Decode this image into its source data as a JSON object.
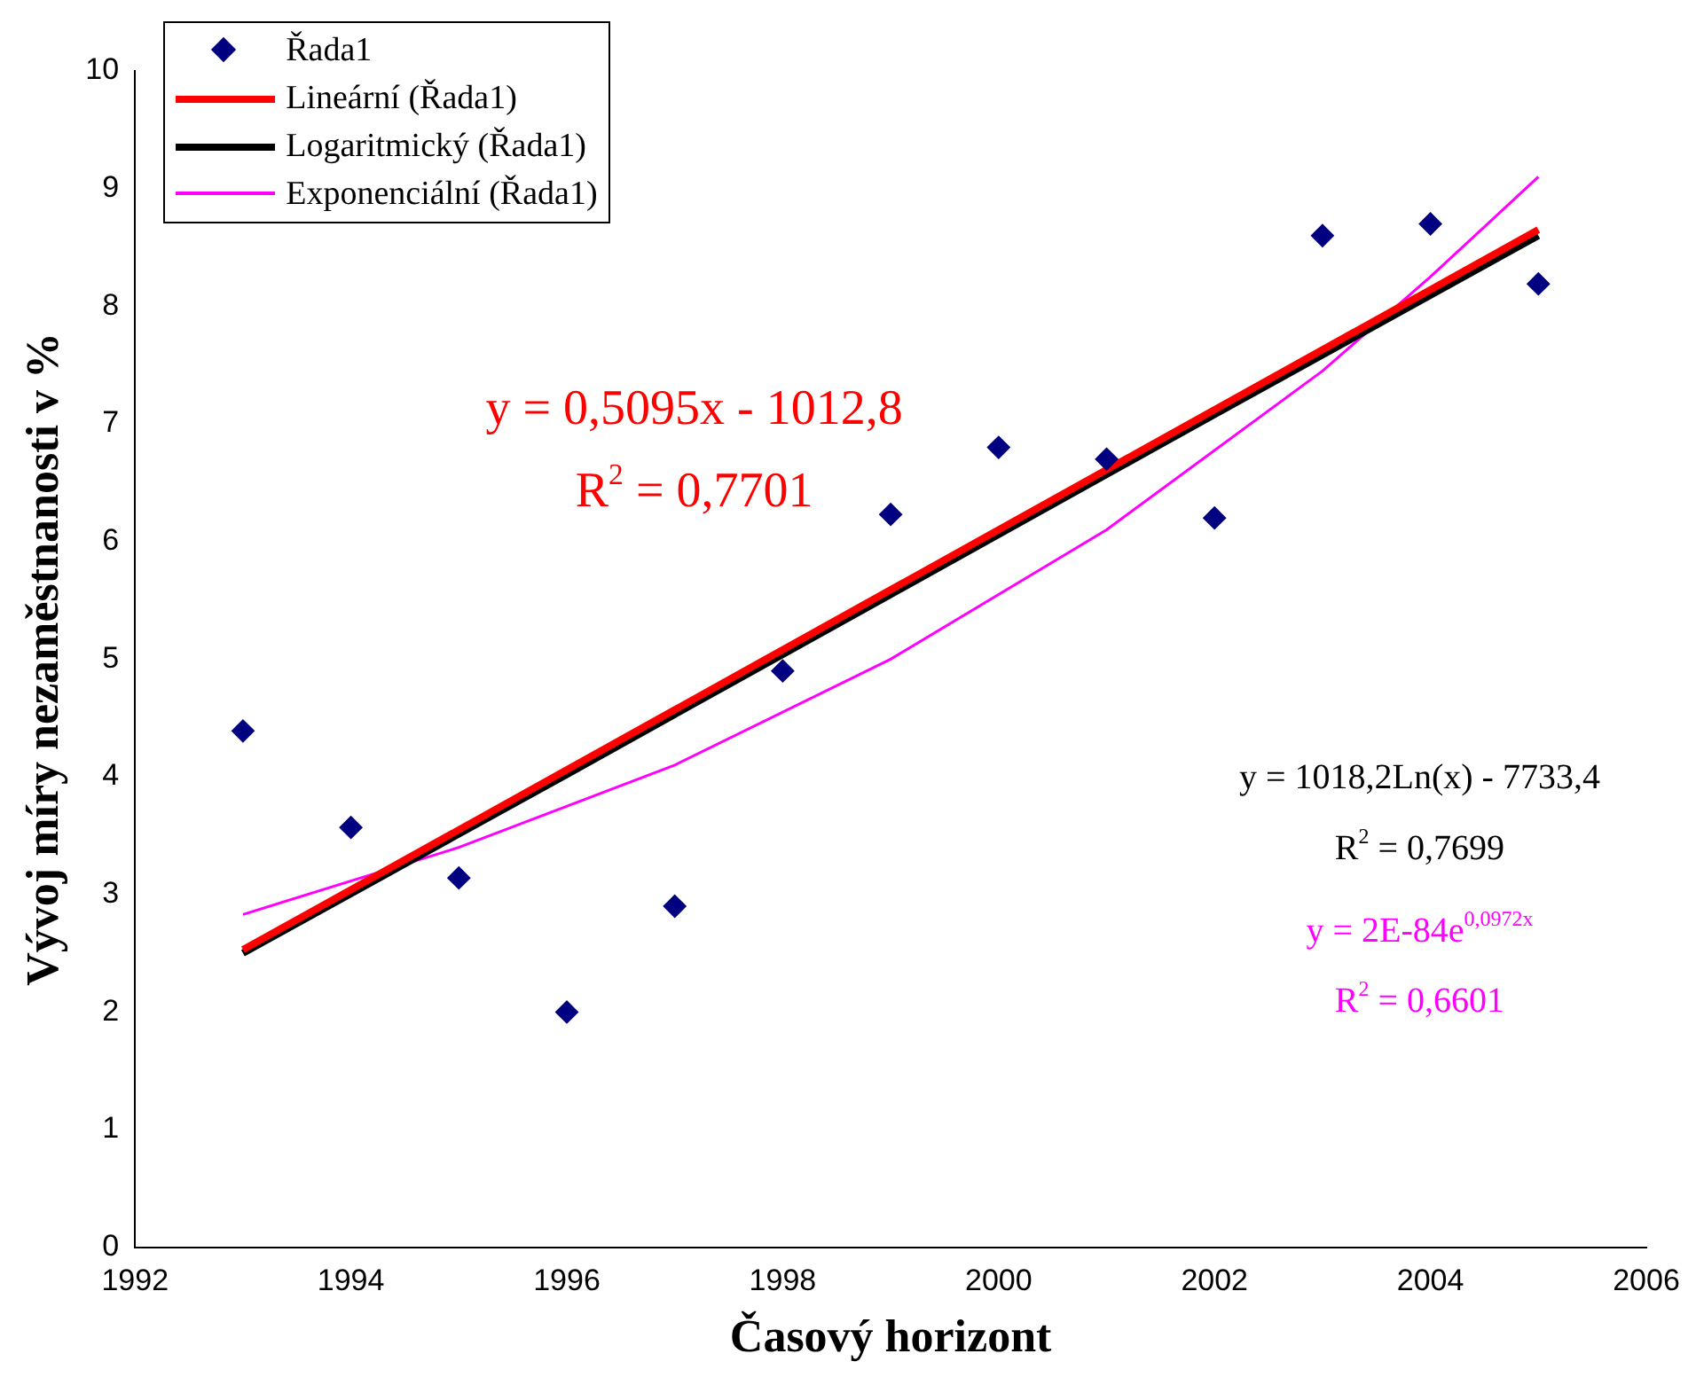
{
  "chart_data": {
    "type": "scatter",
    "xlabel": "Časový horizont",
    "ylabel": "Vývoj míry nezaměstnanosti v %",
    "xlim": [
      1992,
      2006
    ],
    "xticks": [
      1992,
      1994,
      1996,
      1998,
      2000,
      2002,
      2004,
      2006
    ],
    "ylim": [
      0,
      10
    ],
    "yticks": [
      0,
      1,
      2,
      3,
      4,
      5,
      6,
      7,
      8,
      9,
      10
    ],
    "grid": false,
    "legend": "top left",
    "series": [
      {
        "name": "Řada1",
        "type": "scatter",
        "marker": "diamond",
        "color": "#000080",
        "x": [
          1993,
          1994,
          1995,
          1996,
          1997,
          1998,
          1999,
          2000,
          2001,
          2002,
          2003,
          2004,
          2005
        ],
        "values": [
          4.39,
          3.57,
          3.14,
          2.0,
          2.9,
          4.9,
          6.23,
          6.8,
          6.7,
          6.2,
          8.6,
          8.7,
          8.19
        ]
      },
      {
        "name": "Lineární (Řada1)",
        "type": "line",
        "marker": "none",
        "color": "#ff0000",
        "x": [
          1993,
          2005
        ],
        "values": [
          2.53,
          8.65
        ]
      },
      {
        "name": "Logaritmický (Řada1)",
        "type": "line",
        "marker": "none",
        "color": "#000000",
        "x": [
          1993,
          1996,
          1999,
          2002,
          2005
        ],
        "values": [
          2.5,
          4.02,
          5.55,
          7.08,
          8.6
        ]
      },
      {
        "name": "Exponenciální (Řada1)",
        "type": "line",
        "marker": "none",
        "color": "#ff00ff",
        "x": [
          1993,
          1995,
          1997,
          1999,
          2001,
          2003,
          2004,
          2005
        ],
        "values": [
          2.83,
          3.4,
          4.1,
          5.0,
          6.1,
          7.45,
          8.25,
          9.1
        ]
      }
    ],
    "annotations": [
      "y = 0,5095x - 1012,8",
      "R$^{2}$ = 0,7701",
      "y = 1018,2Ln(x) - 7733,4",
      "R$^{2}$ = 0,7699",
      "y = 2E-84e$^{0,0972x}$",
      "R$^{2}$ = 0,6601"
    ]
  }
}
